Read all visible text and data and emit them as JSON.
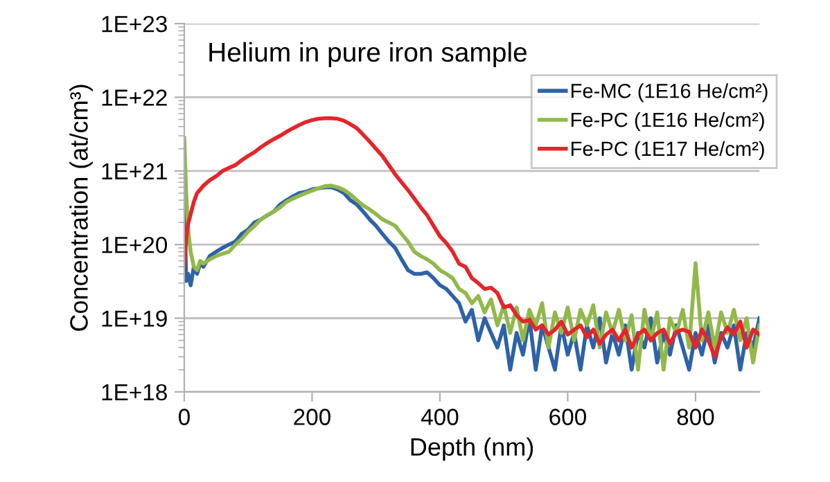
{
  "chart_data": {
    "type": "line",
    "title": "Helium in pure iron sample",
    "xlabel": "Depth (nm)",
    "ylabel": "Concentration (at/cm³)",
    "x": [
      0,
      3,
      6,
      10,
      15,
      20,
      25,
      30,
      40,
      50,
      60,
      70,
      80,
      90,
      100,
      110,
      120,
      130,
      140,
      150,
      160,
      170,
      180,
      190,
      200,
      210,
      220,
      230,
      240,
      250,
      260,
      270,
      280,
      290,
      300,
      310,
      320,
      330,
      340,
      350,
      360,
      370,
      380,
      390,
      400,
      410,
      420,
      430,
      440,
      450,
      460,
      470,
      480,
      490,
      500,
      510,
      520,
      530,
      540,
      550,
      560,
      570,
      580,
      590,
      600,
      610,
      620,
      630,
      640,
      650,
      660,
      670,
      680,
      690,
      700,
      710,
      720,
      730,
      740,
      750,
      760,
      770,
      780,
      790,
      800,
      810,
      820,
      830,
      840,
      850,
      860,
      870,
      880,
      890,
      900
    ],
    "series": [
      {
        "name": "Fe-MC (1E16 He/cm²)",
        "color": "#2e62a8",
        "values": [
          4e+20,
          3.2e+19,
          4e+19,
          2.8e+19,
          5e+19,
          4e+19,
          5.6e+19,
          5e+19,
          7e+19,
          8e+19,
          9e+19,
          1e+20,
          1.1e+20,
          1.4e+20,
          1.6e+20,
          2e+20,
          2.2e+20,
          2.5e+20,
          2.8e+20,
          3.5e+20,
          4e+20,
          4.5e+20,
          5e+20,
          5.2e+20,
          5.6e+20,
          5.8e+20,
          6e+20,
          6e+20,
          5.6e+20,
          5e+20,
          4e+20,
          3.5e+20,
          2.8e+20,
          2.2e+20,
          1.8e+20,
          1.4e+20,
          1.1e+20,
          9e+19,
          6.3e+19,
          4.5e+19,
          4e+19,
          4e+19,
          4.2e+19,
          3.5e+19,
          2.8e+19,
          2.5e+19,
          2e+19,
          1.6e+19,
          9e+18,
          1.3e+19,
          5e+18,
          1e+19,
          6.3e+18,
          4e+18,
          8e+18,
          2e+18,
          6.3e+18,
          3.2e+18,
          1e+19,
          2e+18,
          8e+18,
          4e+18,
          2e+18,
          8e+18,
          3.2e+18,
          6.3e+18,
          2e+18,
          8e+18,
          4e+18,
          1e+19,
          2.5e+18,
          6.3e+18,
          3.2e+18,
          8e+18,
          2e+18,
          6.3e+18,
          4e+18,
          1e+19,
          2.5e+18,
          6.3e+18,
          3.2e+18,
          8e+18,
          4e+18,
          2e+18,
          6.3e+18,
          3.2e+18,
          8e+18,
          2.5e+18,
          6.3e+18,
          4e+18,
          8e+18,
          2e+18,
          6.3e+18,
          4e+18,
          1e+19
        ]
      },
      {
        "name": "Fe-PC (1E16 He/cm²)",
        "color": "#92b84a",
        "values": [
          2.8e+21,
          5e+20,
          1.6e+20,
          8e+19,
          5e+19,
          4.5e+19,
          6e+19,
          5.5e+19,
          6.3e+19,
          7e+19,
          7.5e+19,
          8e+19,
          1e+20,
          1.2e+20,
          1.5e+20,
          1.8e+20,
          2.2e+20,
          2.5e+20,
          2.8e+20,
          3.2e+20,
          3.8e+20,
          4.2e+20,
          4.6e+20,
          5e+20,
          5.4e+20,
          5.8e+20,
          6.2e+20,
          6.3e+20,
          6e+20,
          5.5e+20,
          4.8e+20,
          4e+20,
          3.4e+20,
          3e+20,
          2.6e+20,
          2.2e+20,
          2e+20,
          1.8e+20,
          1.4e+20,
          1.1e+20,
          8e+19,
          7e+19,
          6.3e+19,
          5.5e+19,
          4.5e+19,
          4e+19,
          3.5e+19,
          2.5e+19,
          2.2e+19,
          1.6e+19,
          2e+19,
          1.2e+19,
          1.8e+19,
          8e+18,
          1.5e+19,
          6.3e+18,
          1.4e+19,
          5e+18,
          1.3e+19,
          8e+18,
          1.6e+19,
          4e+18,
          1.2e+19,
          6.3e+18,
          1.4e+19,
          5e+18,
          1.3e+19,
          8e+18,
          1.5e+19,
          4e+18,
          1.2e+19,
          6.3e+18,
          1.3e+19,
          5e+18,
          1.1e+19,
          2e+18,
          1.3e+19,
          5e+18,
          1.2e+19,
          2e+18,
          1e+19,
          6.3e+18,
          1.3e+19,
          4e+18,
          5.6e+19,
          5e+18,
          1.2e+19,
          4e+18,
          1.2e+19,
          6.3e+18,
          1.3e+19,
          5e+18,
          1e+19,
          2.5e+18,
          8e+18
        ]
      },
      {
        "name": "Fe-PC (1E17 He/cm²)",
        "color": "#e3262a",
        "values": [
          5e+19,
          1.2e+20,
          1.9e+20,
          2.6e+20,
          3.8e+20,
          5e+20,
          5.6e+20,
          6.3e+20,
          7.5e+20,
          8.5e+20,
          1e+21,
          1.1e+21,
          1.2e+21,
          1.4e+21,
          1.6e+21,
          1.8e+21,
          2.1e+21,
          2.4e+21,
          2.7e+21,
          3e+21,
          3.4e+21,
          3.8e+21,
          4.2e+21,
          4.6e+21,
          4.9e+21,
          5.1e+21,
          5.2e+21,
          5.2e+21,
          5.1e+21,
          4.8e+21,
          4.3e+21,
          3.8e+21,
          3.1e+21,
          2.5e+21,
          2e+21,
          1.6e+21,
          1.2e+21,
          9e+20,
          7e+20,
          5.5e+20,
          4.2e+20,
          3.2e+20,
          2.5e+20,
          1.8e+20,
          1.3e+20,
          1.05e+20,
          8e+19,
          5.5e+19,
          5e+19,
          3.5e+19,
          3e+19,
          2.5e+19,
          2.6e+19,
          2.2e+19,
          1.4e+19,
          1.5e+19,
          1.1e+19,
          9e+18,
          9.5e+18,
          7e+18,
          8e+18,
          6e+18,
          7e+18,
          9e+18,
          6e+18,
          7e+18,
          8e+18,
          5.5e+18,
          7e+18,
          4.5e+18,
          6e+18,
          7e+18,
          5e+18,
          7e+18,
          4e+18,
          6e+18,
          7e+18,
          5e+18,
          6.3e+18,
          7e+18,
          4.5e+18,
          6.5e+18,
          7e+18,
          6.5e+18,
          4e+18,
          7e+18,
          5e+18,
          3e+18,
          5.5e+18,
          7.5e+18,
          6e+18,
          9e+18,
          4e+18,
          7e+18,
          6e+18
        ]
      }
    ],
    "log": true,
    "xlim": [
      0,
      900
    ],
    "xticks": [
      0,
      200,
      400,
      600,
      800
    ],
    "ylim": [
      1e+18,
      1e+23
    ],
    "yticks": [
      {
        "value": 1e+18,
        "label": "1E+18"
      },
      {
        "value": 1e+19,
        "label": "1E+19"
      },
      {
        "value": 1e+20,
        "label": "1E+20"
      },
      {
        "value": 1e+21,
        "label": "1E+21"
      },
      {
        "value": 1e+22,
        "label": "1E+22"
      },
      {
        "value": 1e+23,
        "label": "1E+23"
      }
    ],
    "grid": "y",
    "legend": "top right",
    "line_style": "solid",
    "marker": "none"
  }
}
